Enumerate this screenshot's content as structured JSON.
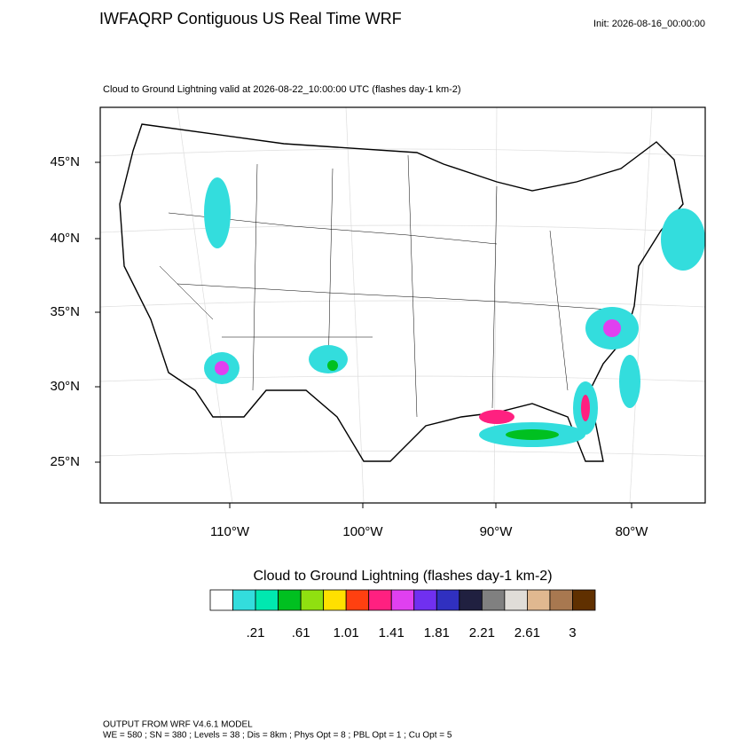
{
  "header": {
    "title": "IWFAQRP Contiguous US Real Time WRF",
    "init": "Init: 2026-08-16_00:00:00",
    "subtitle": "Cloud to Ground Lightning valid at 2026-08-22_10:00:00 UTC   (flashes day-1 km-2)"
  },
  "map": {
    "lat_labels": [
      "45°N",
      "40°N",
      "35°N",
      "30°N",
      "25°N"
    ],
    "lon_labels": [
      "110°W",
      "100°W",
      "90°W",
      "80°W"
    ]
  },
  "colorbar": {
    "title": "Cloud to Ground Lightning  (flashes day-1 km-2)",
    "colors": [
      "#ffffff",
      "#33dddd",
      "#00e8b0",
      "#00c020",
      "#90e010",
      "#ffe000",
      "#ff4010",
      "#ff2080",
      "#e040f0",
      "#7030f0",
      "#3030c0",
      "#202040",
      "#808080",
      "#e0ddd8",
      "#e0b890",
      "#a87850",
      "#603000"
    ],
    "labels": [
      ".21",
      ".61",
      "1.01",
      "1.41",
      "1.81",
      "2.21",
      "2.61",
      "3"
    ]
  },
  "footer": {
    "line1": "OUTPUT FROM WRF V4.6.1 MODEL",
    "line2": "WE = 580 ; SN = 380 ; Levels = 38 ; Dis = 8km ; Phys Opt = 8 ; PBL Opt = 1 ; Cu Opt = 5"
  }
}
